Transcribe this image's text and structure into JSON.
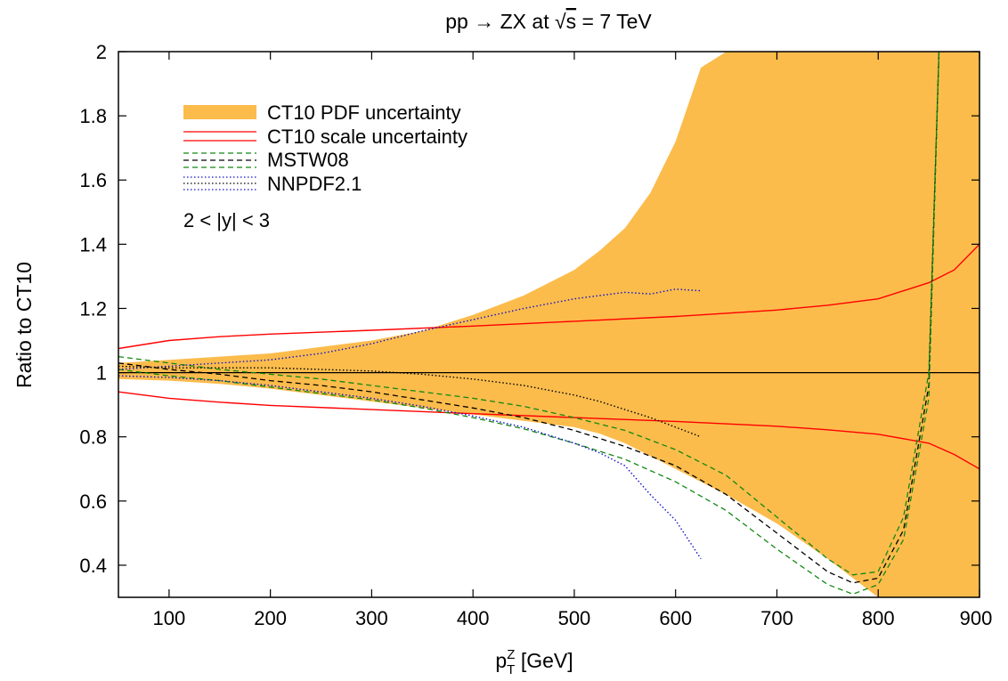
{
  "chart_data": {
    "type": "line",
    "title": "pp → ZX at √s = 7 TeV",
    "title_parts": {
      "prefix": "pp ",
      "arrow": "→",
      "mid": " ZX at ",
      "root": "√",
      "s": "s",
      "suffix": " = 7 TeV"
    },
    "xlabel": "[GeV]",
    "xlabel_parts": {
      "p": "p",
      "sup": "Z",
      "sub": "T",
      "unit": " [GeV]"
    },
    "ylabel": "Ratio to CT10",
    "xlim": [
      50,
      900
    ],
    "ylim": [
      0.3,
      2.0
    ],
    "x_ticks": [
      100,
      200,
      300,
      400,
      500,
      600,
      700,
      800,
      900
    ],
    "y_ticks": [
      0.4,
      0.6,
      0.8,
      1,
      1.2,
      1.4,
      1.6,
      1.8,
      2
    ],
    "annotation": "2 < |y| < 3",
    "colors": {
      "pdf_band": "#fbbc4c",
      "ct10_scale": "#ff0000",
      "mstw_envelope": "#118811",
      "mstw_central": "#000000",
      "nnpdf_envelope": "#1111cc",
      "nnpdf_central": "#000000"
    },
    "legend": {
      "position": "top-left",
      "entries": [
        {
          "label": "CT10 PDF uncertainty",
          "style": "band"
        },
        {
          "label": "CT10 scale uncertainty",
          "style": "solid-pair"
        },
        {
          "label": "MSTW08",
          "style": "dashed-triple"
        },
        {
          "label": "NNPDF2.1",
          "style": "dotted-triple"
        }
      ]
    },
    "series": [
      {
        "name": "CT10 PDF uncertainty",
        "kind": "band",
        "x": [
          50,
          100,
          150,
          200,
          250,
          300,
          350,
          400,
          450,
          500,
          525,
          550,
          575,
          600,
          625,
          650,
          700,
          750,
          800,
          850,
          900
        ],
        "upper": [
          1.03,
          1.04,
          1.05,
          1.06,
          1.08,
          1.1,
          1.13,
          1.18,
          1.24,
          1.32,
          1.38,
          1.45,
          1.56,
          1.72,
          1.95,
          2.0,
          2.0,
          2.0,
          2.0,
          2.0,
          2.0
        ],
        "lower": [
          0.98,
          0.975,
          0.965,
          0.95,
          0.93,
          0.91,
          0.89,
          0.87,
          0.85,
          0.83,
          0.81,
          0.78,
          0.74,
          0.7,
          0.66,
          0.62,
          0.53,
          0.42,
          0.3,
          0.3,
          0.3
        ]
      },
      {
        "name": "CT10 scale uncertainty",
        "kind": "solid-pair",
        "x": [
          50,
          100,
          150,
          200,
          300,
          400,
          500,
          600,
          700,
          750,
          800,
          850,
          875,
          900
        ],
        "upper": [
          1.075,
          1.1,
          1.112,
          1.12,
          1.132,
          1.145,
          1.16,
          1.175,
          1.195,
          1.21,
          1.23,
          1.28,
          1.32,
          1.4
        ],
        "lower": [
          0.94,
          0.92,
          0.908,
          0.898,
          0.885,
          0.872,
          0.86,
          0.848,
          0.833,
          0.822,
          0.808,
          0.78,
          0.745,
          0.7
        ]
      },
      {
        "name": "MSTW08",
        "kind": "dashed-triple",
        "x": [
          50,
          100,
          150,
          200,
          250,
          300,
          350,
          400,
          450,
          500,
          550,
          600,
          650,
          700,
          750,
          775,
          800,
          825,
          850,
          860
        ],
        "upper": [
          1.05,
          1.03,
          1.01,
          0.995,
          0.98,
          0.96,
          0.94,
          0.92,
          0.895,
          0.86,
          0.82,
          0.76,
          0.68,
          0.55,
          0.42,
          0.37,
          0.38,
          0.55,
          1.0,
          2.0
        ],
        "central": [
          1.03,
          1.01,
          0.995,
          0.975,
          0.96,
          0.94,
          0.915,
          0.89,
          0.86,
          0.82,
          0.77,
          0.71,
          0.62,
          0.5,
          0.38,
          0.345,
          0.36,
          0.51,
          0.96,
          2.0
        ],
        "lower": [
          1.01,
          0.99,
          0.975,
          0.955,
          0.935,
          0.915,
          0.89,
          0.86,
          0.825,
          0.78,
          0.73,
          0.66,
          0.57,
          0.45,
          0.34,
          0.31,
          0.34,
          0.48,
          0.92,
          2.0
        ]
      },
      {
        "name": "NNPDF2.1",
        "kind": "dotted-triple",
        "x": [
          50,
          100,
          150,
          200,
          250,
          300,
          350,
          400,
          450,
          500,
          525,
          550,
          575,
          600,
          625
        ],
        "upper": [
          1.01,
          1.02,
          1.03,
          1.04,
          1.06,
          1.09,
          1.13,
          1.165,
          1.2,
          1.23,
          1.24,
          1.25,
          1.245,
          1.26,
          1.255
        ],
        "central": [
          1.02,
          1.015,
          1.015,
          1.015,
          1.01,
          1.005,
          0.995,
          0.98,
          0.96,
          0.93,
          0.91,
          0.885,
          0.86,
          0.83,
          0.8
        ],
        "lower": [
          0.99,
          0.985,
          0.975,
          0.96,
          0.94,
          0.92,
          0.895,
          0.865,
          0.83,
          0.78,
          0.75,
          0.71,
          0.62,
          0.54,
          0.42
        ]
      }
    ]
  }
}
